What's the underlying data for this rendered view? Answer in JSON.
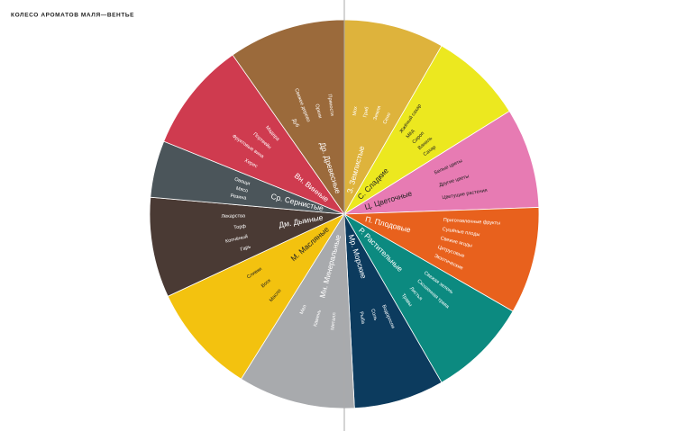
{
  "header": {
    "title": "КОЛЕСО АРОМАТОВ МАЛЯ—ВЕНТЬЕ"
  },
  "wheel": {
    "sectors": [
      {
        "label": "З. Землистые",
        "items": [
          "Мох",
          "Гриб",
          "Земля",
          "Сено"
        ]
      },
      {
        "label": "С. Сладкие",
        "items": [
          "Жжёный сахар",
          "Мёд",
          "Сироп",
          "Ваниль",
          "Сахар"
        ]
      },
      {
        "label": "Ц. Цветочные",
        "items": [
          "Белые цветы",
          "Другие цветы",
          "Цветущие растения"
        ]
      },
      {
        "label": "П. Плодовые",
        "items": [
          "Приготовленные фрукты",
          "Сушёные плоды",
          "Свежие ягоды",
          "Цитрусовые",
          "Экзотические"
        ]
      },
      {
        "label": "Р. Растительные",
        "items": [
          "Свежая зелень",
          "Скошенная трава",
          "Листья",
          "Травы"
        ]
      },
      {
        "label": "Мр. Морские",
        "items": [
          "Водоросли",
          "Соль",
          "Рыба"
        ]
      },
      {
        "label": "Мн. Минеральные",
        "items": [
          "Металл",
          "Камень",
          "Мел"
        ]
      },
      {
        "label": "М. Масляные",
        "items": [
          "Масло",
          "Воск",
          "Сливки"
        ]
      },
      {
        "label": "Дм. Дымные",
        "items": [
          "Гарь",
          "Копчёный",
          "Торф",
          "Лекарства"
        ]
      },
      {
        "label": "Ср. Сернистые",
        "items": [
          "Резина",
          "Мясо",
          "Овощи"
        ]
      },
      {
        "label": "Вн. Винные",
        "items": [
          "Херес",
          "Фруктовые вина",
          "Портвейн",
          "Мадера"
        ]
      },
      {
        "label": "Др. Древесные",
        "items": [
          "Дуб",
          "Свежее дерево",
          "Орехи",
          "Пряности"
        ]
      }
    ]
  }
}
